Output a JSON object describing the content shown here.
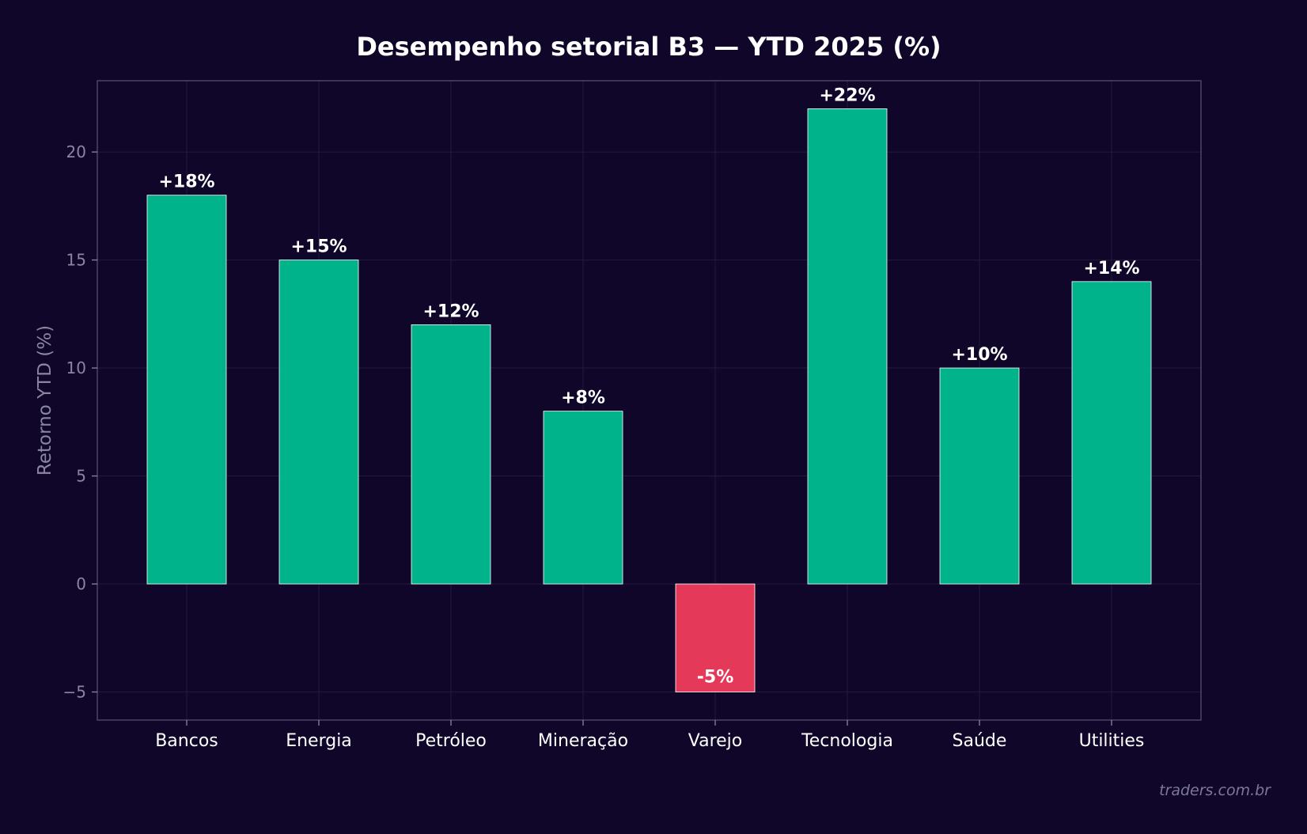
{
  "chart_data": {
    "type": "bar",
    "title": "Desempenho setorial B3 — YTD 2025 (%)",
    "xlabel": "",
    "ylabel": "Retorno YTD (%)",
    "categories": [
      "Bancos",
      "Energia",
      "Petróleo",
      "Mineração",
      "Varejo",
      "Tecnologia",
      "Saúde",
      "Utilities"
    ],
    "values": [
      18,
      15,
      12,
      8,
      -5,
      22,
      10,
      14
    ],
    "data_labels": [
      "+18%",
      "+15%",
      "+12%",
      "+8%",
      "-5%",
      "+22%",
      "+10%",
      "+14%"
    ],
    "y_ticks": [
      -5,
      0,
      5,
      10,
      15,
      20
    ],
    "y_tick_labels": [
      "−5",
      "0",
      "5",
      "10",
      "15",
      "20"
    ],
    "ylim": [
      -6.3,
      23.3
    ],
    "grid": true,
    "legend": "none",
    "colors": {
      "background": "#10062a",
      "positive": "#00b38a",
      "negative": "#e5395a",
      "bar_edge": "#ffffff",
      "axis_frame": "#55506e",
      "grid": "#231a3d",
      "tick_label": "#8a86a0",
      "category_label": "#ffffff",
      "title": "#ffffff",
      "watermark": "#7d7896"
    },
    "watermark": "traders.com.br"
  }
}
